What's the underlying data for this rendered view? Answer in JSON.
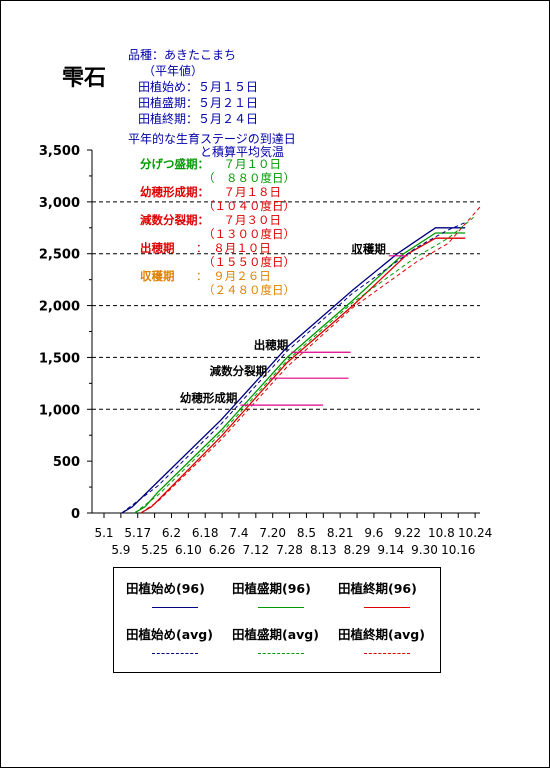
{
  "header": {
    "title": "雫石",
    "variety": "品種：あきたこまち",
    "normal": "（平年値）",
    "start": "田植始め：５月１５日",
    "peak": "田植盛期：５月２１日",
    "end": "田植終期：５月２４日",
    "chart_title_1": "平年的な生育ステージの到達日",
    "chart_title_2": "と積算平均気温"
  },
  "stages": [
    {
      "label": "分げつ盛期：",
      "date": "　７月１０日",
      "gdd": "（　８８０度日）",
      "color": "#009900"
    },
    {
      "label": "幼穂形成期：",
      "date": "　７月１８日",
      "gdd": "（１０４０度日）",
      "color": "#dd0000"
    },
    {
      "label": "減数分裂期：",
      "date": "　７月３０日",
      "gdd": "（１３００度日）",
      "color": "#dd0000"
    },
    {
      "label": "出穂期",
      "date": "：　８月１０日",
      "gdd": "（１５５０度日）",
      "color": "#dd0000"
    },
    {
      "label": "収穫期",
      "date": "：　９月２６日",
      "gdd": "（２４８０度日）",
      "color": "#e08000"
    }
  ],
  "chart_data": {
    "type": "line",
    "ylim": [
      0,
      3500
    ],
    "yticks": [
      "0",
      "500",
      "1,000",
      "1,500",
      "2,000",
      "2,500",
      "3,000",
      "3,500"
    ],
    "x_top": [
      "5.1",
      "5.17",
      "6.2",
      "6.18",
      "7.4",
      "7.20",
      "8.5",
      "8.21",
      "9.6",
      "9.22",
      "10.8",
      "10.24"
    ],
    "x_bottom": [
      "5.9",
      "5.25",
      "6.10",
      "6.26",
      "7.12",
      "7.28",
      "8.13",
      "8.29",
      "9.14",
      "9.30",
      "10.16"
    ],
    "grid_y_dashed": [
      1000,
      1500,
      2000,
      2500,
      3000
    ],
    "x_days": [
      "5.1",
      "10.31"
    ],
    "series": [
      {
        "name": "田植始め(96)",
        "color": "#000080",
        "dash": false,
        "points": [
          [
            "5.15",
            0
          ],
          [
            "5.20",
            60
          ],
          [
            "6.1",
            300
          ],
          [
            "7.1",
            900
          ],
          [
            "8.1",
            1600
          ],
          [
            "9.1",
            2150
          ],
          [
            "9.22",
            2500
          ],
          [
            "10.10",
            2750
          ],
          [
            "10.24",
            2750
          ]
        ]
      },
      {
        "name": "田植盛期(96)",
        "color": "#009900",
        "dash": false,
        "points": [
          [
            "5.21",
            0
          ],
          [
            "5.26",
            60
          ],
          [
            "6.1",
            200
          ],
          [
            "7.1",
            800
          ],
          [
            "8.1",
            1500
          ],
          [
            "9.1",
            2050
          ],
          [
            "9.25",
            2500
          ],
          [
            "10.10",
            2700
          ],
          [
            "10.24",
            2700
          ]
        ]
      },
      {
        "name": "田植終期(96)",
        "color": "#dd0000",
        "dash": false,
        "points": [
          [
            "5.24",
            0
          ],
          [
            "5.29",
            60
          ],
          [
            "6.2",
            140
          ],
          [
            "7.1",
            740
          ],
          [
            "8.1",
            1450
          ],
          [
            "9.1",
            2000
          ],
          [
            "9.27",
            2500
          ],
          [
            "10.10",
            2650
          ],
          [
            "10.24",
            2650
          ]
        ]
      },
      {
        "name": "田植始め(avg)",
        "color": "#000080",
        "dash": true,
        "points": [
          [
            "5.15",
            0
          ],
          [
            "6.1",
            260
          ],
          [
            "7.1",
            860
          ],
          [
            "8.1",
            1560
          ],
          [
            "9.1",
            2120
          ],
          [
            "10.1",
            2560
          ],
          [
            "10.16",
            2730
          ],
          [
            "10.24",
            2800
          ]
        ]
      },
      {
        "name": "田植盛期(avg)",
        "color": "#009900",
        "dash": true,
        "points": [
          [
            "5.21",
            0
          ],
          [
            "6.1",
            170
          ],
          [
            "7.1",
            770
          ],
          [
            "8.1",
            1470
          ],
          [
            "9.1",
            2030
          ],
          [
            "10.1",
            2470
          ],
          [
            "10.16",
            2650
          ],
          [
            "10.28",
            2850
          ]
        ]
      },
      {
        "name": "田植終期(avg)",
        "color": "#dd0000",
        "dash": true,
        "points": [
          [
            "5.24",
            0
          ],
          [
            "6.1",
            110
          ],
          [
            "7.1",
            710
          ],
          [
            "8.1",
            1410
          ],
          [
            "9.1",
            1980
          ],
          [
            "10.1",
            2420
          ],
          [
            "10.16",
            2600
          ],
          [
            "10.31",
            2950
          ]
        ]
      }
    ],
    "markers": [
      {
        "label": "幼穂形成期",
        "y": 1040,
        "x_from": "7.10",
        "x_to": "8.18"
      },
      {
        "label": "減数分裂期",
        "y": 1300,
        "x_from": "7.24",
        "x_to": "8.30"
      },
      {
        "label": "出穂期",
        "y": 1550,
        "x_from": "8.3",
        "x_to": "8.31"
      },
      {
        "label": "収穫期",
        "y": 2480,
        "x_from": "9.18",
        "x_to": "9.27"
      }
    ]
  },
  "legend": {
    "items": [
      {
        "label": "田植始め(96)",
        "color": "#000080",
        "dash": false
      },
      {
        "label": "田植盛期(96)",
        "color": "#009900",
        "dash": false
      },
      {
        "label": "田植終期(96)",
        "color": "#dd0000",
        "dash": false
      },
      {
        "label": "田植始め(avg)",
        "color": "#000080",
        "dash": true
      },
      {
        "label": "田植盛期(avg)",
        "color": "#009900",
        "dash": true
      },
      {
        "label": "田植終期(avg)",
        "color": "#dd0000",
        "dash": true
      }
    ]
  }
}
